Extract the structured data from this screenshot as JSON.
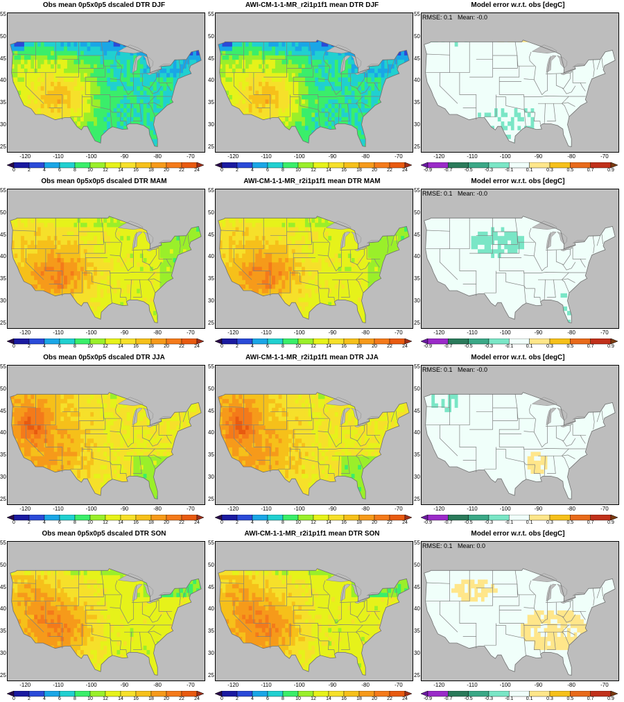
{
  "seasons": [
    "DJF",
    "MAM",
    "JJA",
    "SON"
  ],
  "columns": {
    "obs": {
      "titles": [
        "Obs mean 0p5x0p5 dscaled DTR DJF",
        "Obs mean 0p5x0p5 dscaled DTR MAM",
        "Obs mean 0p5x0p5 dscaled DTR JJA",
        "Obs mean 0p5x0p5 dscaled DTR SON"
      ]
    },
    "model": {
      "titles": [
        "AWI-CM-1-1-MR_r2i1p1f1 mean DTR DJF",
        "AWI-CM-1-1-MR_r2i1p1f1 mean DTR MAM",
        "AWI-CM-1-1-MR_r2i1p1f1 mean DTR JJA",
        "AWI-CM-1-1-MR_r2i1p1f1 mean DTR SON"
      ]
    },
    "error": {
      "titles": [
        "Model error w.r.t. obs [degC]",
        "Model error w.r.t. obs [degC]",
        "Model error w.r.t. obs [degC]",
        "Model error w.r.t. obs [degC]"
      ],
      "stats": [
        "RMSE: 0.1   Mean: -0.0",
        "RMSE: 0.1   Mean: -0.0",
        "RMSE: 0.1   Mean: -0.0",
        "RMSE: 0.1   Mean: 0.0"
      ]
    }
  },
  "axes": {
    "lat_ticks": [
      "25",
      "30",
      "35",
      "40",
      "45",
      "50",
      "55"
    ],
    "lon_ticks": [
      "-120",
      "-110",
      "-100",
      "-90",
      "-80",
      "-70"
    ]
  },
  "colorbars": {
    "dtr": {
      "labels": [
        "0",
        "2",
        "4",
        "6",
        "8",
        "10",
        "12",
        "14",
        "16",
        "18",
        "20",
        "22",
        "24"
      ],
      "colors": [
        "#2a0a4a",
        "#1a1aa0",
        "#2a4ad8",
        "#1aa6e6",
        "#20d0d0",
        "#3aee6a",
        "#9aef2a",
        "#e6f21a",
        "#f6e02a",
        "#f6c01a",
        "#f69a1a",
        "#f47a1a",
        "#e85a10",
        "#a0301a"
      ]
    },
    "error": {
      "labels": [
        "-0.9",
        "-0.7",
        "-0.5",
        "-0.3",
        "-0.1",
        "0.1",
        "0.3",
        "0.5",
        "0.7",
        "0.9"
      ],
      "colors": [
        "#6a1aa0",
        "#9a2ac8",
        "#2a7a5a",
        "#3aa886",
        "#7ae6c6",
        "#f0fffa",
        "#ffe68a",
        "#f6c01a",
        "#e86a1a",
        "#c0301a",
        "#7a3a10"
      ]
    }
  },
  "chart_data": {
    "type": "heatmap",
    "variable": "DTR",
    "seasons": [
      "DJF",
      "MAM",
      "JJA",
      "SON"
    ],
    "lat_range": [
      24,
      55
    ],
    "lon_range": [
      -125,
      -66
    ],
    "dtr_levels": [
      0,
      2,
      4,
      6,
      8,
      10,
      12,
      14,
      16,
      18,
      20,
      22,
      24
    ],
    "error_levels": [
      -0.9,
      -0.7,
      -0.5,
      -0.3,
      -0.1,
      0.1,
      0.3,
      0.5,
      0.7,
      0.9
    ],
    "error_stats": [
      {
        "season": "DJF",
        "rmse": 0.1,
        "mean": -0.0
      },
      {
        "season": "MAM",
        "rmse": 0.1,
        "mean": -0.0
      },
      {
        "season": "JJA",
        "rmse": 0.1,
        "mean": -0.0
      },
      {
        "season": "SON",
        "rmse": 0.1,
        "mean": 0.0
      }
    ]
  }
}
